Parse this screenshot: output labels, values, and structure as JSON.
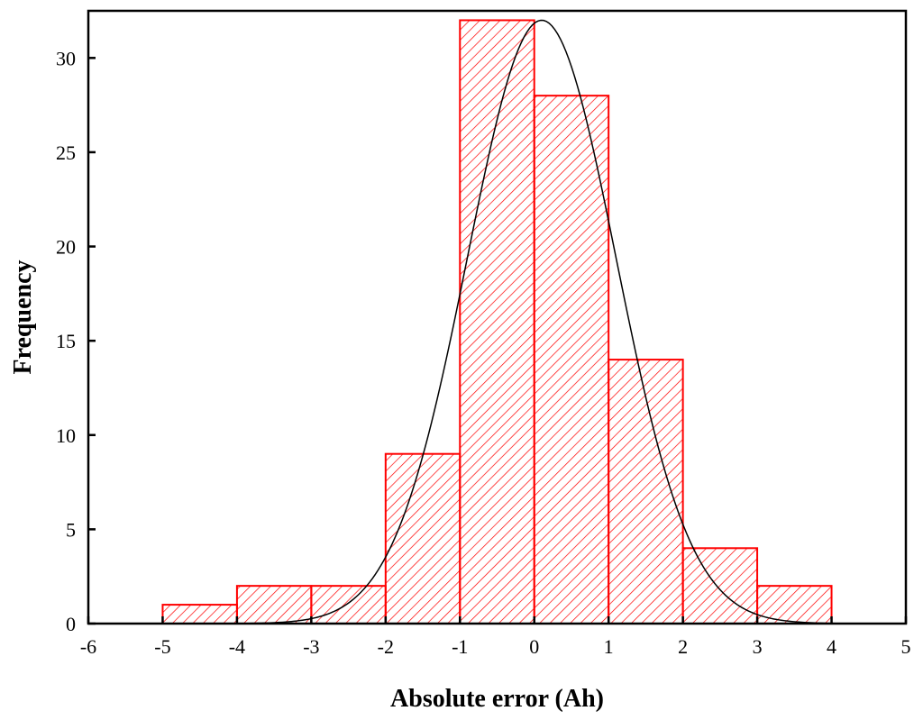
{
  "chart_data": {
    "type": "bar",
    "subtype": "histogram",
    "title": "",
    "xlabel": "Absolute error (Ah)",
    "ylabel": "Frequency",
    "xlim": [
      -6,
      5
    ],
    "ylim": [
      0,
      32.5
    ],
    "xticks": [
      -6,
      -5,
      -4,
      -3,
      -2,
      -1,
      0,
      1,
      2,
      3,
      4,
      5
    ],
    "yticks": [
      0,
      5,
      10,
      15,
      20,
      25,
      30
    ],
    "bins": [
      {
        "start": -5,
        "end": -4,
        "value": 1
      },
      {
        "start": -4,
        "end": -3,
        "value": 2
      },
      {
        "start": -3,
        "end": -2,
        "value": 2
      },
      {
        "start": -2,
        "end": -1,
        "value": 9
      },
      {
        "start": -1,
        "end": 0,
        "value": 32
      },
      {
        "start": 0,
        "end": 1,
        "value": 28
      },
      {
        "start": 1,
        "end": 2,
        "value": 14
      },
      {
        "start": 2,
        "end": 3,
        "value": 4
      },
      {
        "start": 3,
        "end": 4,
        "value": 2
      }
    ],
    "fit_curve": {
      "type": "normal",
      "mean": 0.1,
      "sd": 1.0,
      "peak": 32,
      "x_range": [
        -4.1,
        4.2
      ]
    },
    "grid": false,
    "colors": {
      "bar_edge": "#ff0000",
      "bar_hatch": "#ff0000",
      "curve": "#000000",
      "axis": "#000000"
    }
  }
}
